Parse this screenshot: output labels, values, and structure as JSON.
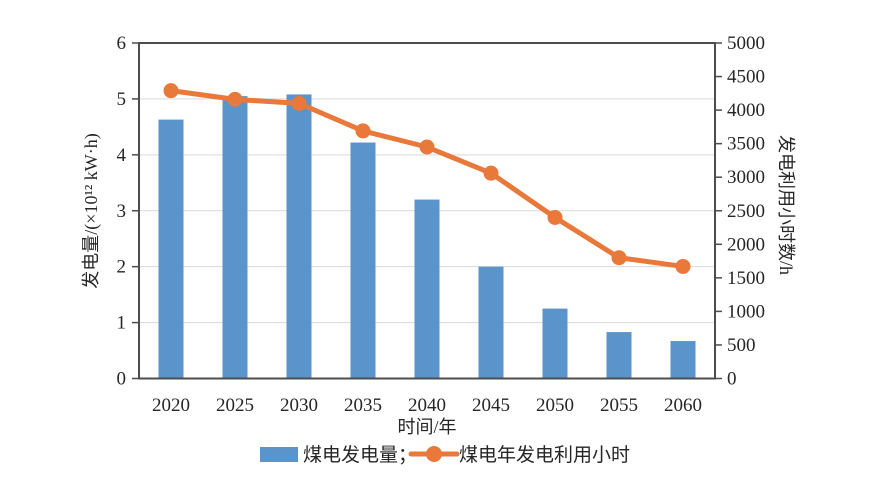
{
  "chart_data": {
    "type": "bar+line",
    "categories": [
      "2020",
      "2025",
      "2030",
      "2035",
      "2040",
      "2045",
      "2050",
      "2055",
      "2060"
    ],
    "series": [
      {
        "name": "煤电发电量",
        "type": "bar",
        "axis": "left",
        "color": "#5B93CB",
        "values": [
          4.63,
          5.05,
          5.08,
          4.22,
          3.2,
          2.0,
          1.25,
          0.83,
          0.67
        ]
      },
      {
        "name": "煤电年发电利用小时",
        "type": "line",
        "axis": "right",
        "color": "#E8793B",
        "values": [
          4290,
          4160,
          4100,
          3690,
          3450,
          3060,
          2400,
          1800,
          1670
        ]
      }
    ],
    "x_axis": {
      "label": "时间/年",
      "tick_labels": [
        "2020",
        "2025",
        "2030",
        "2035",
        "2040",
        "2045",
        "2050",
        "2055",
        "2060"
      ]
    },
    "left_axis": {
      "label": "发电量/(×10¹² kW·h)",
      "min": 0,
      "max": 6,
      "step": 1,
      "tick_labels": [
        "0",
        "1",
        "2",
        "3",
        "4",
        "5",
        "6"
      ]
    },
    "right_axis": {
      "label": "发电利用小时数/h",
      "min": 0,
      "max": 5000,
      "step": 500,
      "tick_labels": [
        "0",
        "500",
        "1000",
        "1500",
        "2000",
        "2500",
        "3000",
        "3500",
        "4000",
        "4500",
        "5000"
      ]
    },
    "legend": [
      {
        "label": "煤电发电量；",
        "type": "bar",
        "color": "#5B93CB"
      },
      {
        "label": "煤电年发电利用小时",
        "type": "line",
        "color": "#E8793B"
      }
    ],
    "grid": {
      "show": true,
      "color": "#D9D9D9",
      "at": [
        1,
        2,
        3,
        4,
        5
      ]
    },
    "frame_color": "#4D4D4D",
    "text_color": "#262626",
    "background": "#FFFFFF"
  }
}
